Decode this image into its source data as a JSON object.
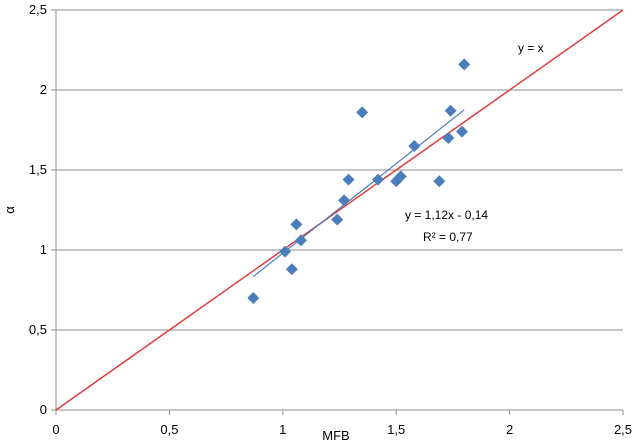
{
  "chart_data": {
    "type": "scatter",
    "xlabel": "MFB",
    "ylabel": "α",
    "xlim": [
      0,
      2.5
    ],
    "ylim": [
      0,
      2.5
    ],
    "x_ticks": [
      "0",
      "0,5",
      "1",
      "1,5",
      "2",
      "2,5"
    ],
    "y_ticks": [
      "0",
      "0,5",
      "1",
      "1,5",
      "2",
      "2,5"
    ],
    "grid": "horizontal",
    "colors": {
      "points": "#4a7ebb",
      "identity_line": "#e03c3c",
      "trend_line": "#4a7ebb",
      "grid": "#8c8c8c"
    },
    "points": [
      {
        "x": 0.87,
        "y": 0.7
      },
      {
        "x": 1.01,
        "y": 0.99
      },
      {
        "x": 1.04,
        "y": 0.88
      },
      {
        "x": 1.06,
        "y": 1.16
      },
      {
        "x": 1.08,
        "y": 1.06
      },
      {
        "x": 1.24,
        "y": 1.19
      },
      {
        "x": 1.27,
        "y": 1.31
      },
      {
        "x": 1.29,
        "y": 1.44
      },
      {
        "x": 1.35,
        "y": 1.86
      },
      {
        "x": 1.42,
        "y": 1.44
      },
      {
        "x": 1.5,
        "y": 1.43
      },
      {
        "x": 1.52,
        "y": 1.46
      },
      {
        "x": 1.58,
        "y": 1.65
      },
      {
        "x": 1.69,
        "y": 1.43
      },
      {
        "x": 1.73,
        "y": 1.7
      },
      {
        "x": 1.74,
        "y": 1.87
      },
      {
        "x": 1.79,
        "y": 1.74
      },
      {
        "x": 1.8,
        "y": 2.16
      }
    ],
    "identity_line": {
      "label": "y = x",
      "from": [
        0,
        0
      ],
      "to": [
        2.5,
        2.5
      ]
    },
    "trend_line": {
      "slope": 1.12,
      "intercept": -0.14,
      "x_range": [
        0.87,
        1.8
      ]
    },
    "annotations": {
      "identity": "y = x",
      "equation": "y = 1,12x - 0,14",
      "r2": "R² = 0,77"
    }
  }
}
